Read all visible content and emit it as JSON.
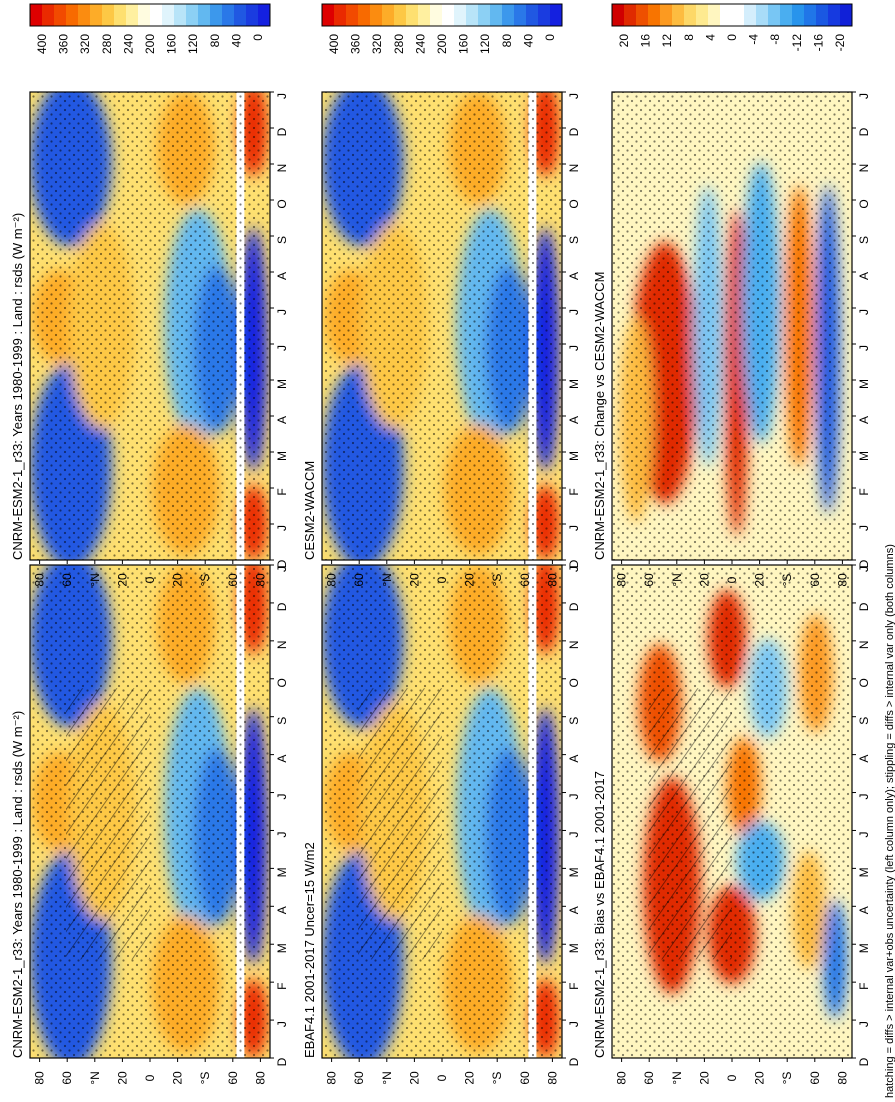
{
  "figure": {
    "type": "hovmoller-panel-figure",
    "caption": "hatching = diffs > internal var+obs uncertainty (left column only); stippling = diffs > internal var only (both columns)"
  },
  "axes": {
    "month_ticks": [
      "D",
      "J",
      "F",
      "M",
      "A",
      "M",
      "J",
      "J",
      "A",
      "S",
      "O",
      "N",
      "D",
      "J"
    ],
    "lat_ticks": [
      "80",
      "60",
      "°N",
      "20",
      "0",
      "20",
      "°S",
      "60",
      "80"
    ]
  },
  "colorbars": {
    "absolute": {
      "tick_labels": [
        "400",
        "360",
        "320",
        "280",
        "240",
        "200",
        "160",
        "120",
        "80",
        "40",
        "0"
      ],
      "colors": [
        "#de0000",
        "#ea2a00",
        "#f24a00",
        "#f86a00",
        "#fb8c10",
        "#fdac28",
        "#fdc845",
        "#fee070",
        "#fff0a0",
        "#fffce0",
        "#ffffff",
        "#e0f4fc",
        "#b8e4f8",
        "#8cd0f4",
        "#62b8f0",
        "#3c98ec",
        "#2a78e8",
        "#2058e2",
        "#1a3ce0",
        "#1420e0"
      ]
    },
    "difference": {
      "tick_labels": [
        "20",
        "16",
        "12",
        "8",
        "4",
        "0",
        "-4",
        "-8",
        "-12",
        "-16",
        "-20"
      ],
      "colors": [
        "#d00000",
        "#e02a00",
        "#ee5000",
        "#f87400",
        "#fc9a20",
        "#fdbc40",
        "#fdd868",
        "#feea90",
        "#fff6c0",
        "#ffffff",
        "#ffffff",
        "#d4eefc",
        "#a8dcf8",
        "#78c6f4",
        "#4aaef0",
        "#2894ec",
        "#2076e8",
        "#1a58e2",
        "#163ae0",
        "#1020d8"
      ]
    }
  },
  "panels": [
    {
      "id": "model-left",
      "title": "CNRM-ESM2-1_r33: Years 1980-1999 : Land : rsds (W m⁻²)",
      "kind": "absolute",
      "hatching": true
    },
    {
      "id": "obs",
      "title": "EBAF4.1 2001-2017 Uncer=15 W/m2",
      "kind": "absolute",
      "hatching": true
    },
    {
      "id": "bias",
      "title": "CNRM-ESM2-1_r33: Bias vs EBAF4.1 2001-2017",
      "kind": "difference",
      "hatching": true
    },
    {
      "id": "model-right",
      "title": "CNRM-ESM2-1_r33: Years 1980-1999 : Land : rsds (W m⁻²)",
      "kind": "absolute",
      "hatching": false
    },
    {
      "id": "other-model",
      "title": "CESM2-WACCM",
      "kind": "absolute",
      "hatching": false
    },
    {
      "id": "change",
      "title": "CNRM-ESM2-1_r33: Change vs CESM2-WACCM",
      "kind": "difference",
      "hatching": false
    }
  ],
  "chart_data": [
    {
      "type": "heatmap",
      "title": "CNRM-ESM2-1_r33: Years 1980-1999 : Land : rsds (W m⁻²)",
      "x": "month",
      "y": "latitude",
      "value_range": [
        0,
        400
      ],
      "units": "W m-2"
    },
    {
      "type": "heatmap",
      "title": "EBAF4.1 2001-2017 Uncer=15 W/m2",
      "x": "month",
      "y": "latitude",
      "value_range": [
        0,
        400
      ],
      "units": "W m-2"
    },
    {
      "type": "heatmap",
      "title": "CNRM-ESM2-1_r33: Bias vs EBAF4.1 2001-2017",
      "x": "month",
      "y": "latitude",
      "value_range": [
        -20,
        20
      ],
      "units": "W m-2"
    },
    {
      "type": "heatmap",
      "title": "CNRM-ESM2-1_r33: Years 1980-1999 : Land : rsds (W m⁻²)",
      "x": "month",
      "y": "latitude",
      "value_range": [
        0,
        400
      ],
      "units": "W m-2"
    },
    {
      "type": "heatmap",
      "title": "CESM2-WACCM",
      "x": "month",
      "y": "latitude",
      "value_range": [
        0,
        400
      ],
      "units": "W m-2"
    },
    {
      "type": "heatmap",
      "title": "CNRM-ESM2-1_r33: Change vs CESM2-WACCM",
      "x": "month",
      "y": "latitude",
      "value_range": [
        -20,
        20
      ],
      "units": "W m-2"
    }
  ]
}
